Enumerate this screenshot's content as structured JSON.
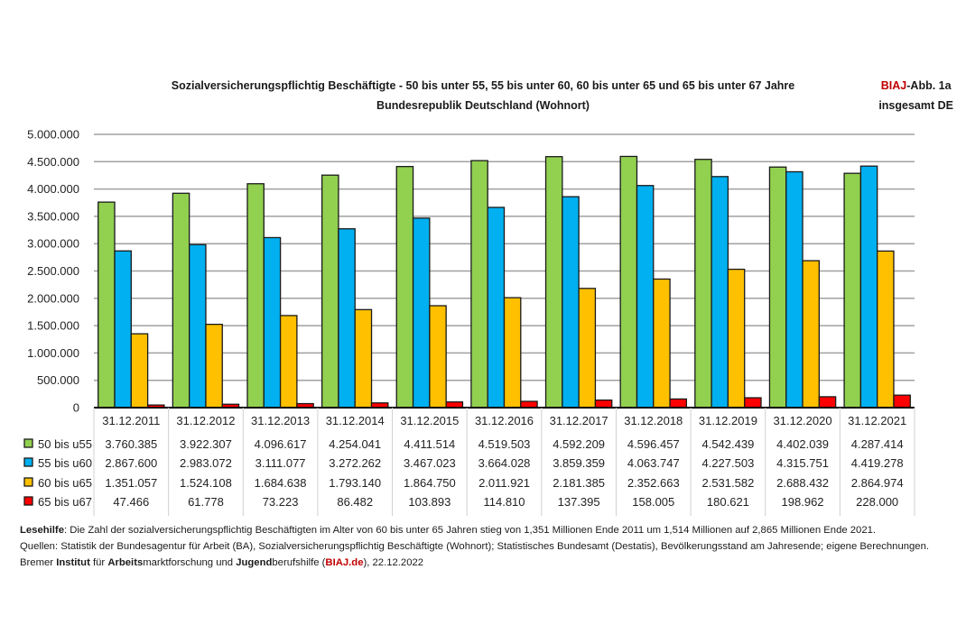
{
  "header": {
    "title_line1": "Sozialversicherungspflichtig Beschäftigte - 50 bis unter 55, 55 bis unter 60, 60 bis unter 65 und 65 bis unter 67 Jahre",
    "title_line2": "Bundesrepublik Deutschland (Wohnort)",
    "badge_brand": "BIAJ",
    "badge_rest": "-Abb. 1a",
    "badge_line2": "insgesamt DE"
  },
  "chart_data": {
    "type": "bar",
    "title": "Sozialversicherungspflichtig Beschäftigte - 50 bis unter 55, 55 bis unter 60, 60 bis unter 65 und 65 bis unter 67 Jahre",
    "subtitle": "Bundesrepublik Deutschland (Wohnort)",
    "xlabel": "",
    "ylabel": "",
    "ylim": [
      0,
      5000000
    ],
    "yticks": [
      0,
      500000,
      1000000,
      1500000,
      2000000,
      2500000,
      3000000,
      3500000,
      4000000,
      4500000,
      5000000
    ],
    "ytick_labels": [
      "0",
      "500.000",
      "1.000.000",
      "1.500.000",
      "2.000.000",
      "2.500.000",
      "3.000.000",
      "3.500.000",
      "4.000.000",
      "4.500.000",
      "5.000.000"
    ],
    "grid": true,
    "legend_placement": "data-table-left",
    "categories": [
      "31.12.2011",
      "31.12.2012",
      "31.12.2013",
      "31.12.2014",
      "31.12.2015",
      "31.12.2016",
      "31.12.2017",
      "31.12.2018",
      "31.12.2019",
      "31.12.2020",
      "31.12.2021"
    ],
    "series": [
      {
        "name": "50 bis u55",
        "color": "#92d050",
        "values": [
          3760385,
          3922307,
          4096617,
          4254041,
          4411514,
          4519503,
          4592209,
          4596457,
          4542439,
          4402039,
          4287414
        ],
        "labels": [
          "3.760.385",
          "3.922.307",
          "4.096.617",
          "4.254.041",
          "4.411.514",
          "4.519.503",
          "4.592.209",
          "4.596.457",
          "4.542.439",
          "4.402.039",
          "4.287.414"
        ]
      },
      {
        "name": "55 bis u60",
        "color": "#00b0f0",
        "values": [
          2867600,
          2983072,
          3111077,
          3272262,
          3467023,
          3664028,
          3859359,
          4063747,
          4227503,
          4315751,
          4419278
        ],
        "labels": [
          "2.867.600",
          "2.983.072",
          "3.111.077",
          "3.272.262",
          "3.467.023",
          "3.664.028",
          "3.859.359",
          "4.063.747",
          "4.227.503",
          "4.315.751",
          "4.419.278"
        ]
      },
      {
        "name": "60 bis u65",
        "color": "#ffc000",
        "values": [
          1351057,
          1524108,
          1684638,
          1793140,
          1864750,
          2011921,
          2181385,
          2352663,
          2531582,
          2688432,
          2864974
        ],
        "labels": [
          "1.351.057",
          "1.524.108",
          "1.684.638",
          "1.793.140",
          "1.864.750",
          "2.011.921",
          "2.181.385",
          "2.352.663",
          "2.531.582",
          "2.688.432",
          "2.864.974"
        ]
      },
      {
        "name": "65 bis u67",
        "color": "#ff0000",
        "values": [
          47466,
          61778,
          73223,
          86482,
          103893,
          114810,
          137395,
          158005,
          180621,
          198962,
          228000
        ],
        "labels": [
          "47.466",
          "61.778",
          "73.223",
          "86.482",
          "103.893",
          "114.810",
          "137.395",
          "158.005",
          "180.621",
          "198.962",
          "228.000"
        ]
      }
    ]
  },
  "notes": {
    "lesehilfe_label": "Lesehilfe",
    "lesehilfe_text": ": Die Zahl der sozialversicherungspflichtig Beschäftigten im Alter von 60 bis unter 65 Jahren stieg von 1,351 Millionen Ende 2011 um 1,514 Millionen auf 2,865 Millionen Ende 2021.",
    "quellen_text": "Quellen: Statistik der Bundesagentur für Arbeit (BA), Sozialversicherungspflichtig Beschäftigte (Wohnort); Statistisches Bundesamt (Destatis), Bevölkerungsstand am Jahresende; eigene Berechnungen.",
    "credit_1": "Bremer ",
    "credit_2": "Institut",
    "credit_3": " für ",
    "credit_4": "Arbeits",
    "credit_5": "marktforschung und ",
    "credit_6": "Jugend",
    "credit_7": "berufshilfe (",
    "credit_8": "BIAJ.de",
    "credit_9": "), 22.12.2022"
  }
}
